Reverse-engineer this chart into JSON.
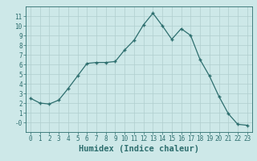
{
  "x": [
    0,
    1,
    2,
    3,
    4,
    5,
    6,
    7,
    8,
    9,
    10,
    11,
    12,
    13,
    14,
    15,
    16,
    17,
    18,
    19,
    20,
    21,
    22,
    23
  ],
  "y": [
    2.5,
    2.0,
    1.9,
    2.3,
    3.5,
    4.8,
    6.1,
    6.2,
    6.2,
    6.3,
    7.5,
    8.5,
    10.1,
    11.3,
    10.0,
    8.6,
    9.7,
    9.0,
    6.5,
    4.8,
    2.7,
    0.9,
    -0.2,
    -0.3
  ],
  "line_color": "#2d6e6e",
  "marker": "+",
  "bg_color": "#cde8e8",
  "grid_color": "#b0cece",
  "xlabel": "Humidex (Indice chaleur)",
  "ylim": [
    -1,
    12
  ],
  "xlim": [
    -0.5,
    23.5
  ],
  "yticks": [
    0,
    1,
    2,
    3,
    4,
    5,
    6,
    7,
    8,
    9,
    10,
    11
  ],
  "ytick_labels": [
    "-0",
    "1",
    "2",
    "3",
    "4",
    "5",
    "6",
    "7",
    "8",
    "9",
    "10",
    "11"
  ],
  "xticks": [
    0,
    1,
    2,
    3,
    4,
    5,
    6,
    7,
    8,
    9,
    10,
    11,
    12,
    13,
    14,
    15,
    16,
    17,
    18,
    19,
    20,
    21,
    22,
    23
  ],
  "tick_label_fontsize": 5.5,
  "xlabel_fontsize": 7.5,
  "tick_color": "#2d6e6e",
  "label_color": "#2d6e6e",
  "spine_color": "#2d6e6e"
}
